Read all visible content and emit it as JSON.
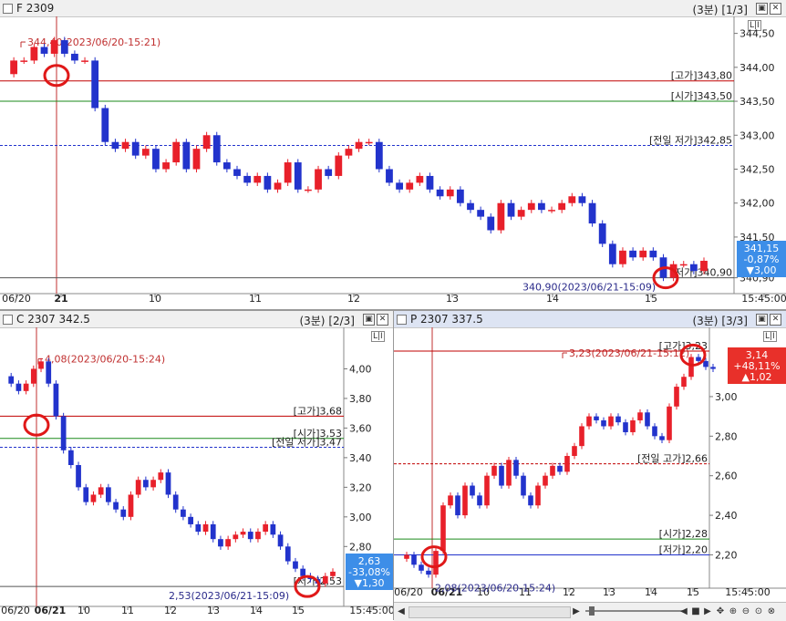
{
  "panels": {
    "top": {
      "title": "F 2309",
      "interval": "(3분)",
      "page": "[1/3]",
      "lr": "L|I"
    },
    "left": {
      "title": "C 2307 342.5",
      "interval": "(3분)",
      "page": "[2/3]",
      "lr": "L|I"
    },
    "right": {
      "title": "P 2307 337.5",
      "interval": "(3분)",
      "page": "[3/3]",
      "lr": "L|I"
    }
  },
  "chart_data": [
    {
      "type": "candlestick",
      "instrument": "F 2309",
      "ylim": [
        340.72,
        344.75
      ],
      "y_ticks": [
        "344,50",
        "344,00",
        "343,50",
        "343,00",
        "342,50",
        "342,00",
        "341,50",
        "340,90"
      ],
      "x_labels": [
        "06/20",
        "21",
        "10",
        "11",
        "12",
        "13",
        "14",
        "15",
        "15:45:00"
      ],
      "colors": {
        "up": "#e8202a",
        "down": "#2233cc"
      },
      "path_points": [
        343.9,
        344.1,
        344.1,
        344.3,
        344.2,
        344.4,
        344.2,
        344.1,
        344.1,
        343.4,
        342.9,
        342.8,
        342.9,
        342.7,
        342.8,
        342.5,
        342.6,
        342.9,
        342.5,
        342.8,
        343.0,
        342.6,
        342.5,
        342.4,
        342.3,
        342.4,
        342.2,
        342.3,
        342.6,
        342.2,
        342.2,
        342.5,
        342.4,
        342.7,
        342.8,
        342.9,
        342.9,
        342.5,
        342.3,
        342.2,
        342.3,
        342.4,
        342.2,
        342.1,
        342.2,
        342.0,
        341.9,
        341.8,
        341.6,
        342.0,
        341.8,
        341.9,
        342.0,
        341.9,
        341.9,
        342.0,
        342.1,
        342.0,
        341.7,
        341.4,
        341.1,
        341.3,
        341.2,
        341.3,
        341.2,
        340.9,
        341.1,
        341.1,
        341.0,
        341.15
      ],
      "annotations": [
        {
          "label": "344,40(2023/06/20-15:21)",
          "kind": "high-marker",
          "value": 344.4
        },
        {
          "label": "[고가]343,80",
          "value": 343.8,
          "color": "#c00000",
          "style": "solid"
        },
        {
          "label": "[시가]343,50",
          "value": 343.5,
          "color": "#1a8a1a",
          "style": "solid"
        },
        {
          "label": "[전일 저가]342,85",
          "value": 342.85,
          "color": "#2233cc",
          "style": "dashed"
        },
        {
          "label": "[저가]340,90",
          "value": 340.9,
          "color": "#555555",
          "style": "solid"
        },
        {
          "label": "340,90(2023/06/21-15:09)",
          "kind": "low-marker",
          "value": 340.9
        }
      ],
      "price_box": {
        "price": "341,15",
        "change_pct": "-0,87%",
        "change": "▼3,00"
      }
    },
    {
      "type": "candlestick",
      "instrument": "C 2307 342.5",
      "ylim": [
        2.42,
        4.28
      ],
      "y_ticks": [
        "4,00",
        "3,80",
        "3,60",
        "3,40",
        "3,20",
        "3,00",
        "2,80"
      ],
      "x_labels": [
        "06/20",
        "06/21",
        "10",
        "11",
        "12",
        "13",
        "14",
        "15",
        "15:45:00"
      ],
      "colors": {
        "up": "#e8202a",
        "down": "#2233cc"
      },
      "path_points": [
        3.95,
        3.9,
        3.85,
        3.9,
        4.0,
        4.05,
        3.9,
        3.68,
        3.45,
        3.35,
        3.2,
        3.1,
        3.15,
        3.2,
        3.1,
        3.05,
        3.0,
        3.15,
        3.25,
        3.2,
        3.25,
        3.3,
        3.15,
        3.05,
        3.0,
        2.95,
        2.9,
        2.95,
        2.85,
        2.8,
        2.85,
        2.88,
        2.9,
        2.85,
        2.9,
        2.95,
        2.88,
        2.8,
        2.7,
        2.65,
        2.6,
        2.58,
        2.55,
        2.6,
        2.63
      ],
      "annotations": [
        {
          "label": "4,08(2023/06/20-15:24)",
          "kind": "high-marker",
          "value": 4.08
        },
        {
          "label": "[고가]3,68",
          "value": 3.68,
          "color": "#c00000",
          "style": "solid"
        },
        {
          "label": "[시가]3,53",
          "value": 3.53,
          "color": "#1a8a1a",
          "style": "solid"
        },
        {
          "label": "[전일 저가]3,47",
          "value": 3.47,
          "color": "#2233cc",
          "style": "dashed"
        },
        {
          "label": "[저가]2,53",
          "value": 2.53,
          "color": "#555555",
          "style": "solid"
        },
        {
          "label": "2,53(2023/06/21-15:09)",
          "kind": "low-marker",
          "value": 2.53
        }
      ],
      "price_box": {
        "price": "2,63",
        "change_pct": "-33,08%",
        "change": "▼1,30"
      }
    },
    {
      "type": "candlestick",
      "instrument": "P 2307 337.5",
      "ylim": [
        2.05,
        3.35
      ],
      "y_ticks": [
        "3,00",
        "2,80",
        "2,60",
        "2,40",
        "2,20"
      ],
      "x_labels": [
        "06/20",
        "06/21",
        "10",
        "11",
        "12",
        "13",
        "14",
        "15",
        "15:45:00"
      ],
      "colors": {
        "up": "#e8202a",
        "down": "#2233cc"
      },
      "path_points": [
        2.18,
        2.2,
        2.15,
        2.12,
        2.1,
        2.22,
        2.45,
        2.5,
        2.4,
        2.55,
        2.5,
        2.45,
        2.6,
        2.65,
        2.55,
        2.68,
        2.6,
        2.5,
        2.45,
        2.55,
        2.6,
        2.65,
        2.62,
        2.7,
        2.75,
        2.85,
        2.9,
        2.88,
        2.85,
        2.9,
        2.87,
        2.82,
        2.88,
        2.92,
        2.85,
        2.8,
        2.78,
        2.95,
        3.05,
        3.1,
        3.2,
        3.18,
        3.15,
        3.14
      ],
      "annotations": [
        {
          "label": "3,23(2023/06/21-15:12)",
          "kind": "high-marker",
          "value": 3.23
        },
        {
          "label": "[고가]3,23",
          "value": 3.23,
          "color": "#c00000",
          "style": "solid"
        },
        {
          "label": "[전일 고가]2,66",
          "value": 2.66,
          "color": "#c00000",
          "style": "dashed"
        },
        {
          "label": "[시가]2,28",
          "value": 2.28,
          "color": "#1a8a1a",
          "style": "solid"
        },
        {
          "label": "[저가]2,20",
          "value": 2.2,
          "color": "#2233cc",
          "style": "solid"
        },
        {
          "label": "2,08(2023/06/20-15:24)",
          "kind": "low-marker",
          "value": 2.08
        }
      ],
      "price_box": {
        "price": "3,14",
        "change_pct": "+48,11%",
        "change": "▲1,02"
      }
    }
  ]
}
